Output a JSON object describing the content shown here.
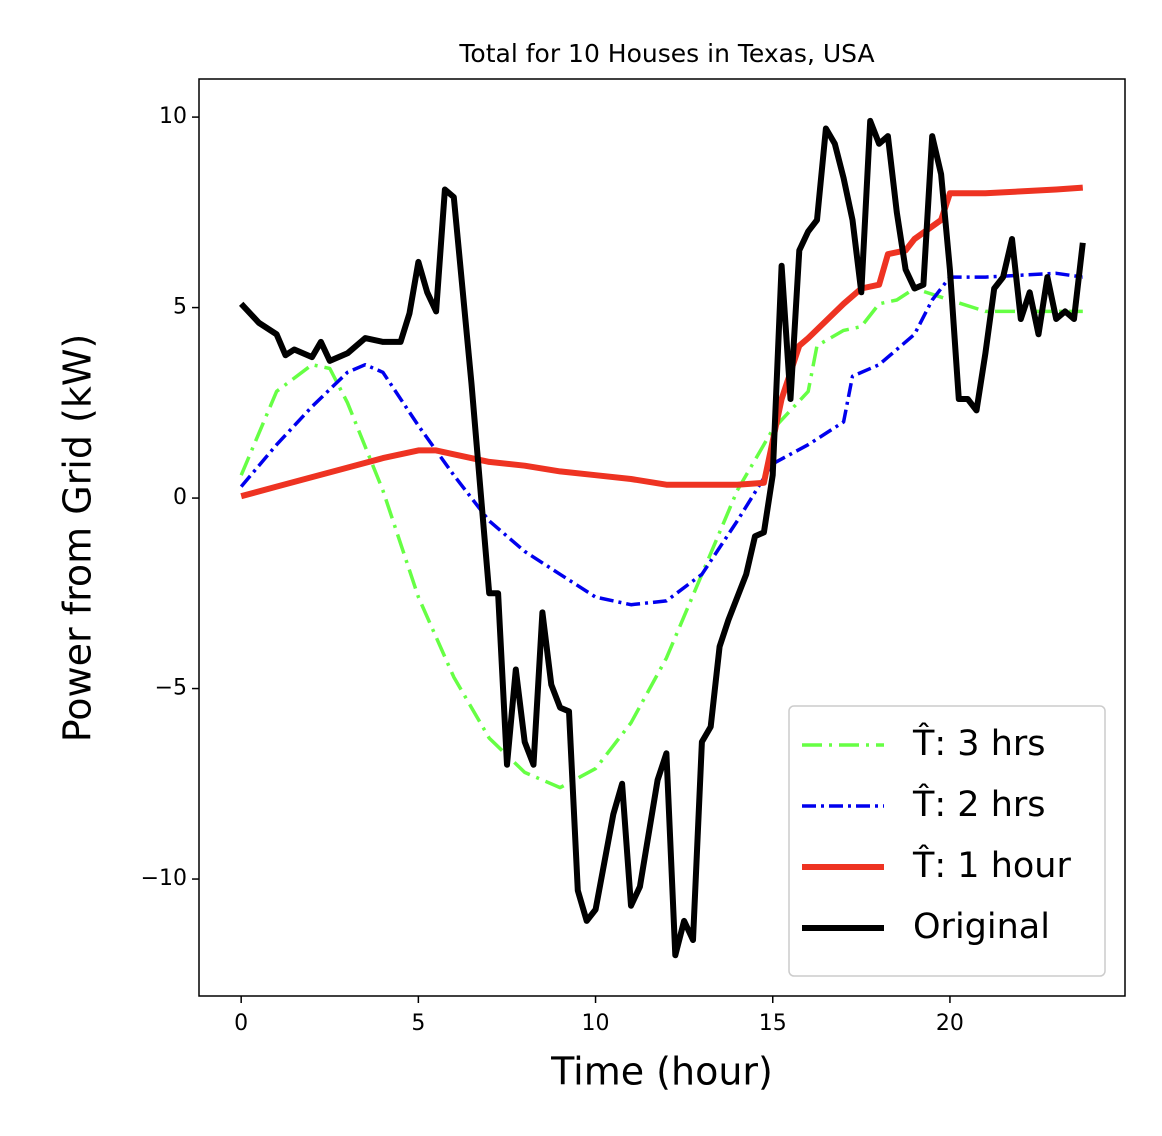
{
  "chart_data": {
    "type": "line",
    "title": "Total for 10 Houses in Texas, USA",
    "x_label": "Time (hour)",
    "y_label": "Power from Grid (kW)",
    "xlim": [
      -1.19,
      24.94
    ],
    "ylim": [
      -13.07,
      11.0
    ],
    "xticks": [
      0,
      5,
      10,
      15,
      20
    ],
    "yticks": [
      {
        "value": -10,
        "label": "−10"
      },
      {
        "value": -5,
        "label": "−5"
      },
      0,
      5,
      10
    ],
    "legend": "lower right",
    "series": [
      {
        "name": "T̂: 3 hrs",
        "color": "#66ff44",
        "style": "dashdot",
        "x": [
          0,
          1,
          2,
          2.5,
          3,
          4,
          5,
          6,
          7,
          8,
          9,
          10,
          11,
          12,
          13,
          14,
          15,
          15.5,
          16,
          16.25,
          17,
          17.5,
          18,
          18.5,
          19,
          20,
          21,
          22,
          23,
          23.75
        ],
        "values": [
          0.6,
          2.8,
          3.5,
          3.4,
          2.5,
          0.2,
          -2.6,
          -4.7,
          -6.3,
          -7.2,
          -7.6,
          -7.1,
          -5.9,
          -4.2,
          -2.0,
          0.2,
          1.8,
          2.3,
          2.8,
          4.0,
          4.4,
          4.5,
          5.1,
          5.2,
          5.5,
          5.2,
          4.9,
          4.9,
          4.9,
          4.9
        ]
      },
      {
        "name": "T̂: 2 hrs",
        "color": "#0000ee",
        "style": "dashdot",
        "x": [
          0,
          1,
          2,
          3,
          3.5,
          4,
          5,
          6,
          7,
          8,
          9,
          10,
          11,
          12,
          13,
          14,
          15,
          16,
          17,
          17.25,
          18,
          19,
          19.5,
          20,
          21,
          22,
          23,
          23.75
        ],
        "values": [
          0.3,
          1.4,
          2.4,
          3.3,
          3.5,
          3.3,
          1.9,
          0.6,
          -0.6,
          -1.4,
          -2.0,
          -2.6,
          -2.8,
          -2.7,
          -2.0,
          -0.6,
          0.9,
          1.4,
          2.0,
          3.2,
          3.5,
          4.3,
          5.2,
          5.8,
          5.8,
          5.85,
          5.9,
          5.8
        ]
      },
      {
        "name": "T̂: 1 hour",
        "color": "#ee3322",
        "style": "solid",
        "x": [
          0,
          1,
          2,
          3,
          4,
          5,
          5.5,
          6,
          7,
          8,
          9,
          10,
          11,
          12,
          13,
          14,
          14.75,
          15.25,
          15.75,
          16,
          17,
          17.5,
          18,
          18.25,
          18.75,
          19,
          19.75,
          20,
          21,
          22,
          23,
          23.75
        ],
        "values": [
          0.05,
          0.3,
          0.55,
          0.8,
          1.05,
          1.25,
          1.25,
          1.15,
          0.95,
          0.85,
          0.7,
          0.6,
          0.5,
          0.35,
          0.35,
          0.35,
          0.4,
          2.6,
          4.0,
          4.2,
          5.1,
          5.5,
          5.6,
          6.4,
          6.5,
          6.8,
          7.3,
          8.0,
          8.0,
          8.05,
          8.1,
          8.15
        ]
      },
      {
        "name": "Original",
        "color": "#000000",
        "style": "solid",
        "x": [
          0,
          0.5,
          1,
          1.25,
          1.5,
          2,
          2.25,
          2.5,
          3,
          3.5,
          4,
          4.5,
          4.75,
          5,
          5.25,
          5.5,
          5.75,
          6,
          6.5,
          7,
          7.25,
          7.5,
          7.75,
          8,
          8.25,
          8.5,
          8.75,
          9,
          9.25,
          9.5,
          9.75,
          10,
          10.5,
          10.75,
          11,
          11.25,
          11.75,
          12,
          12.25,
          12.5,
          12.75,
          13,
          13.25,
          13.5,
          13.75,
          14.25,
          14.5,
          14.75,
          15,
          15.25,
          15.5,
          15.75,
          16,
          16.25,
          16.5,
          16.75,
          17,
          17.25,
          17.5,
          17.75,
          18,
          18.25,
          18.5,
          18.75,
          19,
          19.25,
          19.5,
          19.75,
          20,
          20.25,
          20.5,
          20.75,
          21,
          21.25,
          21.5,
          21.75,
          22,
          22.25,
          22.5,
          22.75,
          23,
          23.25,
          23.5,
          23.75
        ],
        "values": [
          5.1,
          4.6,
          4.3,
          3.75,
          3.9,
          3.7,
          4.1,
          3.6,
          3.8,
          4.2,
          4.1,
          4.1,
          4.85,
          6.2,
          5.4,
          4.9,
          8.1,
          7.9,
          3.0,
          -2.5,
          -2.5,
          -7.0,
          -4.5,
          -6.4,
          -7.0,
          -3.0,
          -4.9,
          -5.5,
          -5.6,
          -10.3,
          -11.1,
          -10.8,
          -8.3,
          -7.5,
          -10.7,
          -10.2,
          -7.4,
          -6.7,
          -12.0,
          -11.1,
          -11.6,
          -6.4,
          -6.0,
          -3.9,
          -3.2,
          -2.0,
          -1.0,
          -0.9,
          0.6,
          6.1,
          2.6,
          6.5,
          7.0,
          7.3,
          9.7,
          9.3,
          8.4,
          7.3,
          5.4,
          9.9,
          9.3,
          9.5,
          7.5,
          6.0,
          5.5,
          5.6,
          9.5,
          8.5,
          6.0,
          2.6,
          2.6,
          2.3,
          3.8,
          5.5,
          5.8,
          6.8,
          4.7,
          5.4,
          4.3,
          5.8,
          4.7,
          4.9,
          4.7,
          6.7
        ]
      }
    ]
  }
}
